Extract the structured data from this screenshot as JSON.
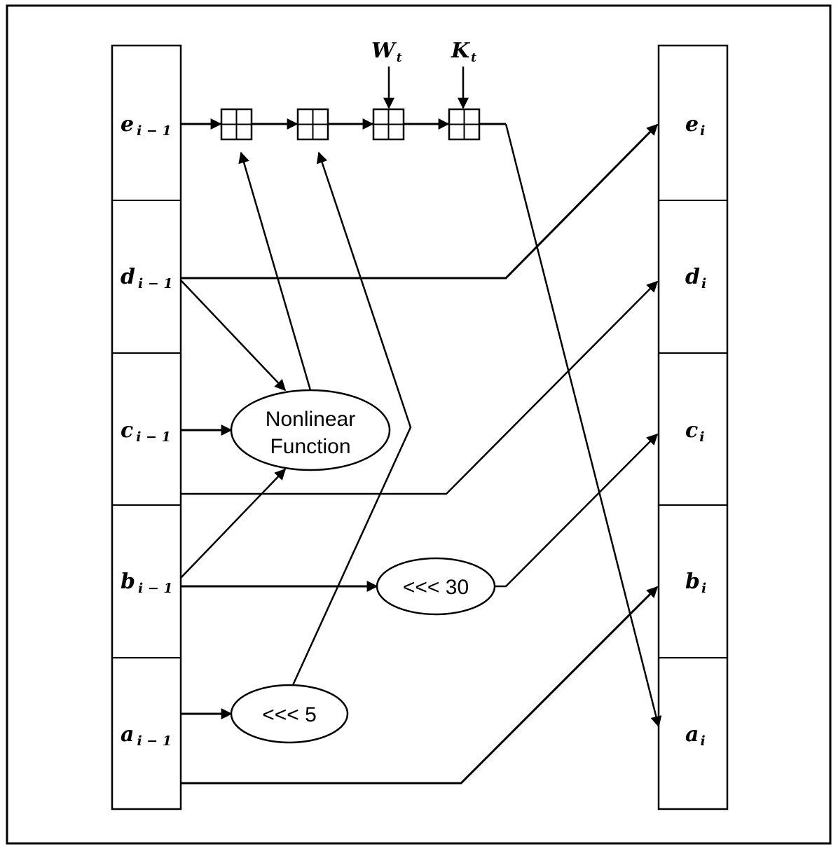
{
  "inputs": {
    "w": {
      "main": "W",
      "sub": "t"
    },
    "k": {
      "main": "K",
      "sub": "t"
    }
  },
  "left_registers": [
    {
      "main": "e",
      "sub": "i − 1"
    },
    {
      "main": "d",
      "sub": "i − 1"
    },
    {
      "main": "c",
      "sub": "i − 1"
    },
    {
      "main": "b",
      "sub": "i − 1"
    },
    {
      "main": "a",
      "sub": "i − 1"
    }
  ],
  "right_registers": [
    {
      "main": "e",
      "sub": "i"
    },
    {
      "main": "d",
      "sub": "i"
    },
    {
      "main": "c",
      "sub": "i"
    },
    {
      "main": "b",
      "sub": "i"
    },
    {
      "main": "a",
      "sub": "i"
    }
  ],
  "operations": {
    "nonlinear": {
      "line1": "Nonlinear",
      "line2": "Function"
    },
    "rotate30": "<<< 30",
    "rotate5": "<<< 5"
  }
}
